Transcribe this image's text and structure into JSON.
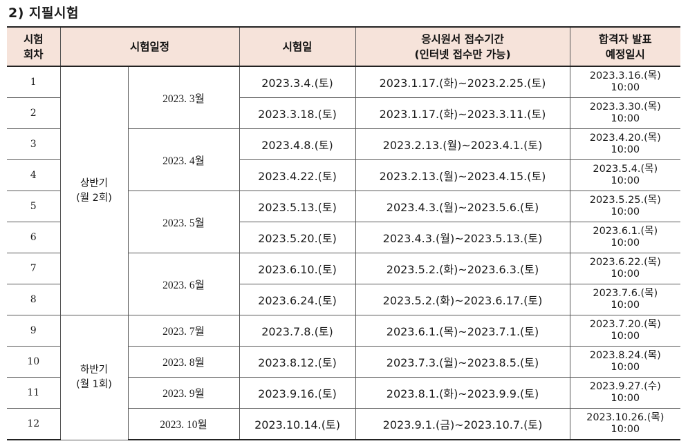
{
  "heading": "2) 지필시험",
  "headers": {
    "round": [
      "시험",
      "회차"
    ],
    "schedule": "시험일정",
    "exam_date": "시험일",
    "period": [
      "응시원서 접수기간",
      "(인터넷 접수만 가능)"
    ],
    "announce": [
      "합격자 발표",
      "예정일시"
    ]
  },
  "halves": [
    {
      "label": "상반기",
      "sub": "(월 2회)"
    },
    {
      "label": "하반기",
      "sub": "(월 1회)"
    }
  ],
  "months": [
    "2023. 3월",
    "2023. 4월",
    "2023. 5월",
    "2023. 6월",
    "2023. 7월",
    "2023. 8월",
    "2023. 9월",
    "2023. 10월"
  ],
  "rows": [
    {
      "round": "1",
      "date": "2023.3.4.(토)",
      "period": "2023.1.17.(화)~2023.2.25.(토)",
      "announce_date": "2023.3.16.(목)",
      "announce_time": "10:00"
    },
    {
      "round": "2",
      "date": "2023.3.18.(토)",
      "period": "2023.1.17.(화)~2023.3.11.(토)",
      "announce_date": "2023.3.30.(목)",
      "announce_time": "10:00"
    },
    {
      "round": "3",
      "date": "2023.4.8.(토)",
      "period": "2023.2.13.(월)~2023.4.1.(토)",
      "announce_date": "2023.4.20.(목)",
      "announce_time": "10:00"
    },
    {
      "round": "4",
      "date": "2023.4.22.(토)",
      "period": "2023.2.13.(월)~2023.4.15.(토)",
      "announce_date": "2023.5.4.(목)",
      "announce_time": "10:00"
    },
    {
      "round": "5",
      "date": "2023.5.13.(토)",
      "period": "2023.4.3.(월)~2023.5.6.(토)",
      "announce_date": "2023.5.25.(목)",
      "announce_time": "10:00"
    },
    {
      "round": "6",
      "date": "2023.5.20.(토)",
      "period": "2023.4.3.(월)~2023.5.13.(토)",
      "announce_date": "2023.6.1.(목)",
      "announce_time": "10:00"
    },
    {
      "round": "7",
      "date": "2023.6.10.(토)",
      "period": "2023.5.2.(화)~2023.6.3.(토)",
      "announce_date": "2023.6.22.(목)",
      "announce_time": "10:00"
    },
    {
      "round": "8",
      "date": "2023.6.24.(토)",
      "period": "2023.5.2.(화)~2023.6.17.(토)",
      "announce_date": "2023.7.6.(목)",
      "announce_time": "10:00"
    },
    {
      "round": "9",
      "date": "2023.7.8.(토)",
      "period": "2023.6.1.(목)~2023.7.1.(토)",
      "announce_date": "2023.7.20.(목)",
      "announce_time": "10:00"
    },
    {
      "round": "10",
      "date": "2023.8.12.(토)",
      "period": "2023.7.3.(월)~2023.8.5.(토)",
      "announce_date": "2023.8.24.(목)",
      "announce_time": "10:00"
    },
    {
      "round": "11",
      "date": "2023.9.16.(토)",
      "period": "2023.8.1.(화)~2023.9.9.(토)",
      "announce_date": "2023.9.27.(수)",
      "announce_time": "10:00"
    },
    {
      "round": "12",
      "date": "2023.10.14.(토)",
      "period": "2023.9.1.(금)~2023.10.7.(토)",
      "announce_date": "2023.10.26.(목)",
      "announce_time": "10:00"
    }
  ]
}
